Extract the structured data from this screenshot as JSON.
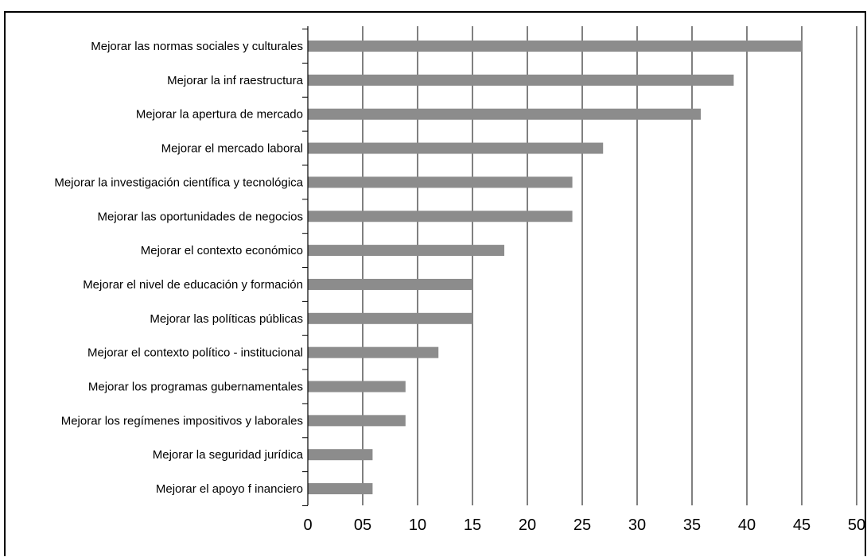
{
  "chart_data": {
    "type": "bar",
    "orientation": "horizontal",
    "categories": [
      "Mejorar las normas sociales y culturales",
      "Mejorar la inf raestructura",
      "Mejorar la apertura de mercado",
      "Mejorar el mercado laboral",
      "Mejorar la investigación científica y tecnológica",
      "Mejorar las oportunidades de negocios",
      "Mejorar el contexto económico",
      "Mejorar el nivel de educación y formación",
      "Mejorar las políticas públicas",
      "Mejorar el contexto político - institucional",
      "Mejorar los programas gubernamentales",
      "Mejorar los regímenes impositivos y laborales",
      "Mejorar la seguridad jurídica",
      "Mejorar el apoyo f inanciero"
    ],
    "values": [
      45,
      38.8,
      35.8,
      26.9,
      24.1,
      24.1,
      17.9,
      15,
      15,
      11.9,
      8.9,
      8.9,
      5.9,
      5.9
    ],
    "xlim": [
      0,
      50
    ],
    "xticks": [
      "0",
      "05",
      "10",
      "15",
      "20",
      "25",
      "30",
      "35",
      "40",
      "45",
      "50"
    ],
    "grid": true,
    "bar_color": "#8c8c8c",
    "title": "",
    "xlabel": "",
    "ylabel": ""
  }
}
